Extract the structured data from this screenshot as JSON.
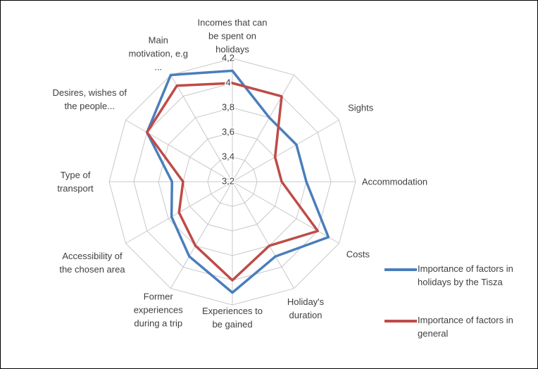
{
  "chart_data": {
    "type": "radar",
    "categories": [
      "Incomes that can be spent on holidays",
      null,
      "Sights",
      "Accommodation",
      "Costs",
      "Holiday's duration",
      "Experiences to be gained",
      "Former experiences during a trip",
      "Accessibility of the chosen area",
      "Type of transport",
      "Desires, wishes of the people...",
      "Main motivation, e.g ..."
    ],
    "series": [
      {
        "name": "Importance of factors in holidays by the Tisza",
        "color": "#4a7ebb",
        "values": [
          4.1,
          3.8,
          3.8,
          3.8,
          4.1,
          3.9,
          4.1,
          3.9,
          3.77,
          3.69,
          4.0,
          4.2
        ]
      },
      {
        "name": "Importance of factors in general",
        "color": "#be4b48",
        "values": [
          4.0,
          4.0,
          3.6,
          3.6,
          4.0,
          3.8,
          4.0,
          3.8,
          3.7,
          3.6,
          4.0,
          4.1
        ]
      }
    ],
    "ylim": [
      3.2,
      4.2
    ],
    "yticks": [
      {
        "value": 3.2,
        "label": "3,2"
      },
      {
        "value": 3.4,
        "label": "3,4"
      },
      {
        "value": 3.6,
        "label": "3,6"
      },
      {
        "value": 3.8,
        "label": "3,8"
      },
      4,
      {
        "value": 4.2,
        "label": "4,2"
      }
    ],
    "legend": "right"
  }
}
